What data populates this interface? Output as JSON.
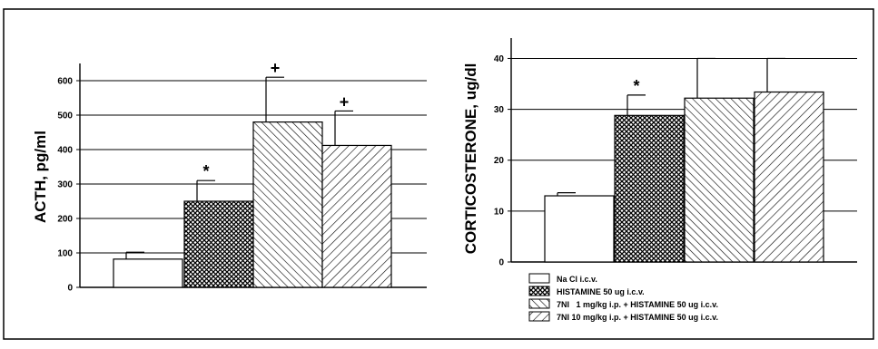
{
  "chart_data": [
    {
      "type": "bar",
      "ylabel": "ACTH, pg/ml",
      "ylim": [
        0,
        650
      ],
      "yticks": [
        0,
        100,
        200,
        300,
        400,
        500,
        600
      ],
      "grid": true,
      "bars": [
        {
          "group": "Na Cl i.c.v.",
          "value": 82,
          "error": 20,
          "marker": ""
        },
        {
          "group": "HISTAMINE 50 ug i.c.v.",
          "value": 250,
          "error": 60,
          "marker": "*"
        },
        {
          "group": "7NI 1 mg/kg i.p. + HISTAMINE 50 ug i.c.v.",
          "value": 480,
          "error": 130,
          "marker": "+"
        },
        {
          "group": "7NI 10 mg/kg i.p. + HISTAMINE 50 ug i.c.v.",
          "value": 412,
          "error": 100,
          "marker": "+"
        }
      ]
    },
    {
      "type": "bar",
      "ylabel": "CORTICOSTERONE, ug/dl",
      "ylim": [
        0,
        44
      ],
      "yticks": [
        0,
        10,
        20,
        30,
        40
      ],
      "grid": true,
      "bars": [
        {
          "group": "Na Cl i.c.v.",
          "value": 13,
          "error": 0.6,
          "marker": ""
        },
        {
          "group": "HISTAMINE 50 ug i.c.v.",
          "value": 28.8,
          "error": 4,
          "marker": "*"
        },
        {
          "group": "7NI 1 mg/kg i.p. + HISTAMINE 50 ug i.c.v.",
          "value": 32.2,
          "error": 7.8,
          "marker": ""
        },
        {
          "group": "7NI 10 mg/kg i.p. + HISTAMINE 50 ug i.c.v.",
          "value": 33.4,
          "error": 6.6,
          "marker": ""
        }
      ]
    }
  ],
  "legend": {
    "position": "bottom-right",
    "entries": [
      "Na Cl i.c.v.",
      "HISTAMINE 50 ug i.c.v.",
      "7NI   1 mg/kg i.p. + HISTAMINE 50 ug i.c.v.",
      "7NI 10 mg/kg i.p. + HISTAMINE 50 ug i.c.v."
    ]
  }
}
